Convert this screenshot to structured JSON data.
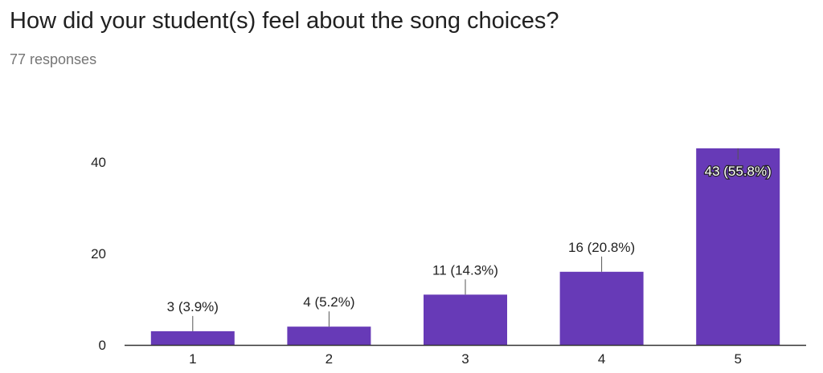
{
  "question": {
    "title": "How did your student(s) feel about the song choices?",
    "responses": "77 responses"
  },
  "colors": {
    "bar": "#673ab7",
    "axis": "#333333",
    "leader": "#555555"
  },
  "chart_data": {
    "type": "bar",
    "title": "How did your student(s) feel about the song choices?",
    "xlabel": "",
    "ylabel": "",
    "categories": [
      "1",
      "2",
      "3",
      "4",
      "5"
    ],
    "values": [
      3,
      4,
      11,
      16,
      43
    ],
    "labels": [
      "3 (3.9%)",
      "4 (5.2%)",
      "11 (14.3%)",
      "16 (20.8%)",
      "43 (55.8%)"
    ],
    "yticks": [
      0,
      20,
      40
    ],
    "ylim": [
      0,
      50
    ],
    "grid": false,
    "legend": "none"
  }
}
